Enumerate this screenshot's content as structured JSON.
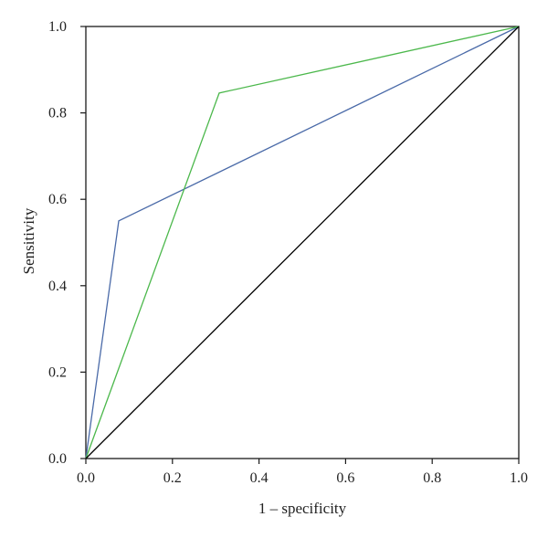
{
  "chart_data": {
    "type": "line",
    "title": "",
    "xlabel": "1 – specificity",
    "ylabel": "Sensitivity",
    "xlim": [
      0,
      1
    ],
    "ylim": [
      0,
      1
    ],
    "xticks": [
      0.0,
      0.2,
      0.4,
      0.6,
      0.8,
      1.0
    ],
    "yticks": [
      0.0,
      0.2,
      0.4,
      0.6,
      0.8,
      1.0
    ],
    "xtick_labels": [
      "0.0",
      "0.2",
      "0.4",
      "0.6",
      "0.8",
      "1.0"
    ],
    "ytick_labels": [
      "0.0",
      "0.2",
      "0.4",
      "0.6",
      "0.8",
      "1.0"
    ],
    "grid": false,
    "legend": "none",
    "series": [
      {
        "color": "#4a6aa8",
        "points": [
          [
            0.0,
            0.0
          ],
          [
            0.076,
            0.55
          ],
          [
            1.0,
            1.0
          ]
        ]
      },
      {
        "color": "#4cb84c",
        "points": [
          [
            0.0,
            0.0
          ],
          [
            0.308,
            0.846
          ],
          [
            1.0,
            1.0
          ]
        ]
      },
      {
        "color": "#000000",
        "points": [
          [
            0.0,
            0.0
          ],
          [
            1.0,
            1.0
          ]
        ]
      }
    ]
  }
}
